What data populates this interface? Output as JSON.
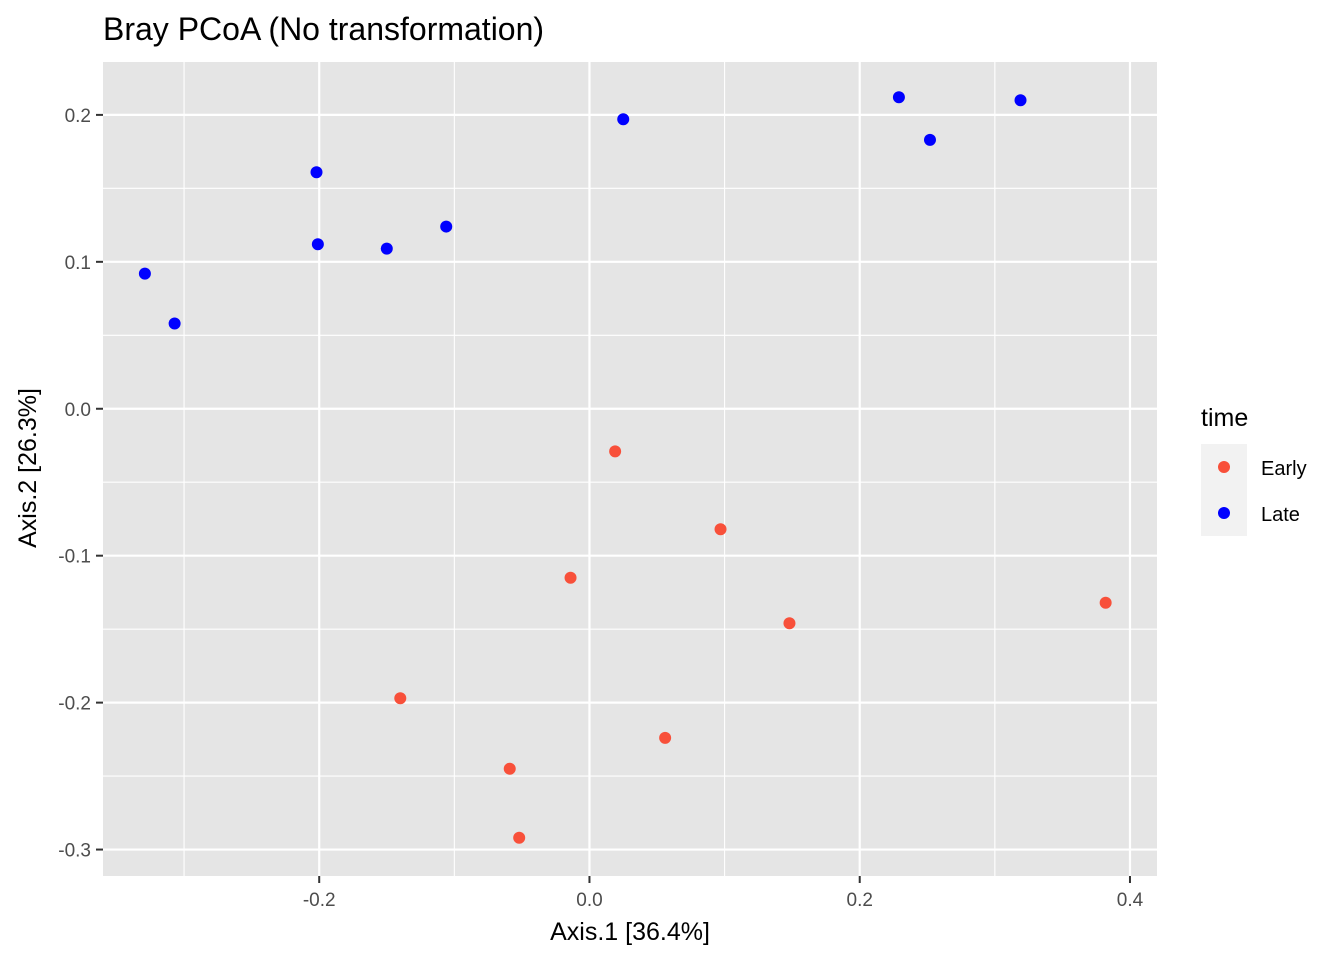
{
  "chart_data": {
    "type": "scatter",
    "title": "Bray PCoA (No transformation)",
    "xlabel": "Axis.1   [36.4%]",
    "ylabel": "Axis.2   [26.3%]",
    "xlim": [
      -0.36,
      0.42
    ],
    "ylim": [
      -0.318,
      0.236
    ],
    "x_ticks": [
      -0.2,
      0.0,
      0.2,
      0.4
    ],
    "x_tick_labels": [
      "-0.2",
      "0.0",
      "0.2",
      "0.4"
    ],
    "y_ticks": [
      -0.3,
      -0.2,
      -0.1,
      0.0,
      0.1,
      0.2
    ],
    "y_tick_labels": [
      "-0.3",
      "-0.2",
      "-0.1",
      "0.0",
      "0.1",
      "0.2"
    ],
    "grid": true,
    "panel_background": "#e5e5e5",
    "grid_color": "#ffffff",
    "legend": {
      "title": "time",
      "placement": "right"
    },
    "series": [
      {
        "name": "Early",
        "color": "#f8503a",
        "points": [
          {
            "x": 0.019,
            "y": -0.029
          },
          {
            "x": 0.097,
            "y": -0.082
          },
          {
            "x": -0.014,
            "y": -0.115
          },
          {
            "x": 0.148,
            "y": -0.146
          },
          {
            "x": 0.382,
            "y": -0.132
          },
          {
            "x": -0.14,
            "y": -0.197
          },
          {
            "x": 0.056,
            "y": -0.224
          },
          {
            "x": -0.059,
            "y": -0.245
          },
          {
            "x": -0.052,
            "y": -0.292
          }
        ]
      },
      {
        "name": "Late",
        "color": "#0000ff",
        "points": [
          {
            "x": 0.025,
            "y": 0.197
          },
          {
            "x": 0.229,
            "y": 0.212
          },
          {
            "x": 0.319,
            "y": 0.21
          },
          {
            "x": 0.252,
            "y": 0.183
          },
          {
            "x": -0.202,
            "y": 0.161
          },
          {
            "x": -0.201,
            "y": 0.112
          },
          {
            "x": -0.15,
            "y": 0.109
          },
          {
            "x": -0.106,
            "y": 0.124
          },
          {
            "x": -0.329,
            "y": 0.092
          },
          {
            "x": -0.307,
            "y": 0.058
          }
        ]
      }
    ]
  }
}
